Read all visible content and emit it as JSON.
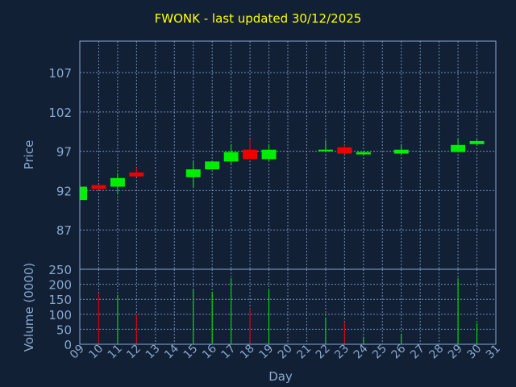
{
  "title": "FWONK - last updated 30/12/2025",
  "chart_data": {
    "type": "candlestick",
    "title": "FWONK - last updated 30/12/2025",
    "xlabel": "Day",
    "price_panel": {
      "ylabel": "Price",
      "ylim": [
        82,
        111
      ],
      "yticks": [
        87,
        92,
        97,
        102,
        107
      ]
    },
    "volume_panel": {
      "ylabel": "Volume (0000)",
      "ylim": [
        0,
        250
      ],
      "yticks": [
        0,
        50,
        100,
        150,
        200,
        250
      ]
    },
    "x_tick_labels": [
      "09",
      "10",
      "11",
      "12",
      "13",
      "14",
      "15",
      "16",
      "17",
      "18",
      "19",
      "20",
      "21",
      "22",
      "23",
      "24",
      "25",
      "26",
      "27",
      "28",
      "29",
      "30",
      "31"
    ],
    "candles": [
      {
        "day": "09",
        "open": 90.8,
        "close": 92.5,
        "high": 92.6,
        "low": 90.8,
        "volume": 0
      },
      {
        "day": "10",
        "open": 92.7,
        "close": 92.2,
        "high": 92.7,
        "low": 92.1,
        "volume": 170
      },
      {
        "day": "11",
        "open": 92.5,
        "close": 93.6,
        "high": 94.2,
        "low": 91.5,
        "volume": 165
      },
      {
        "day": "12",
        "open": 94.3,
        "close": 93.8,
        "high": 94.9,
        "low": 93.8,
        "volume": 100
      },
      {
        "day": "15",
        "open": 93.7,
        "close": 94.7,
        "high": 95.8,
        "low": 92.4,
        "volume": 185
      },
      {
        "day": "16",
        "open": 94.7,
        "close": 95.7,
        "high": 95.7,
        "low": 94.7,
        "volume": 175
      },
      {
        "day": "17",
        "open": 95.7,
        "close": 96.9,
        "high": 97.9,
        "low": 95.3,
        "volume": 220
      },
      {
        "day": "18",
        "open": 97.2,
        "close": 96.0,
        "high": 98.5,
        "low": 96.0,
        "volume": 120
      },
      {
        "day": "19",
        "open": 96.0,
        "close": 97.2,
        "high": 97.9,
        "low": 95.7,
        "volume": 180
      },
      {
        "day": "22",
        "open": 97.0,
        "close": 97.2,
        "high": 98.4,
        "low": 96.9,
        "volume": 90
      },
      {
        "day": "23",
        "open": 97.5,
        "close": 96.7,
        "high": 97.8,
        "low": 96.6,
        "volume": 75
      },
      {
        "day": "24",
        "open": 96.6,
        "close": 96.9,
        "high": 96.9,
        "low": 96.5,
        "volume": 25
      },
      {
        "day": "26",
        "open": 96.7,
        "close": 97.2,
        "high": 97.9,
        "low": 96.6,
        "volume": 35
      },
      {
        "day": "29",
        "open": 96.9,
        "close": 97.8,
        "high": 98.6,
        "low": 96.9,
        "volume": 220
      },
      {
        "day": "30",
        "open": 97.9,
        "close": 98.3,
        "high": 98.5,
        "low": 97.7,
        "volume": 70
      }
    ],
    "grid": true,
    "colors": {
      "up": "#00ee00",
      "down": "#ee0000",
      "background": "#112035",
      "plot_border": "#8aa8cf",
      "grid": "#8aa8cf",
      "tick_labels": "#8aa8cf",
      "title": "#ffff00"
    }
  }
}
